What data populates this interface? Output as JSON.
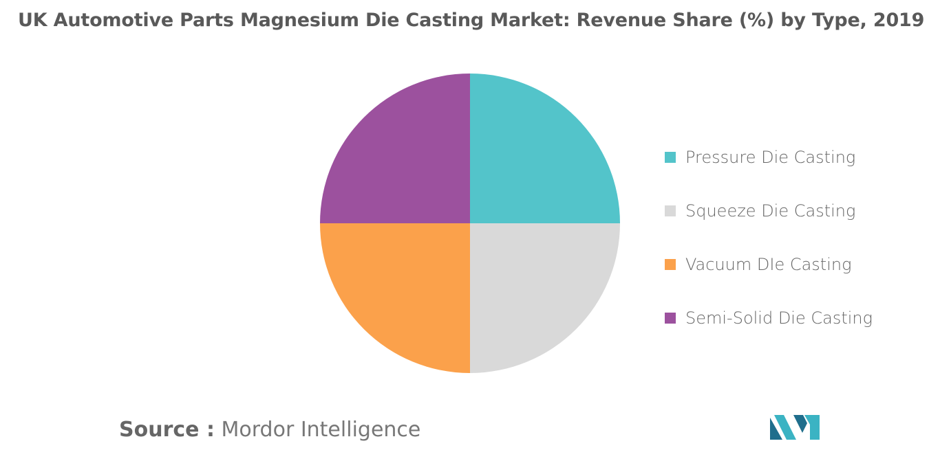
{
  "chart_data": {
    "type": "pie",
    "title": "UK Automotive Parts Magnesium Die Casting Market: Revenue Share (%) by Type, 2019",
    "slices": [
      {
        "label": "Pressure Die Casting",
        "value": 25,
        "color": "#53C4CA"
      },
      {
        "label": "Squeeze Die Casting",
        "value": 25,
        "color": "#D9D9D9"
      },
      {
        "label": "Vacuum DIe Casting",
        "value": 25,
        "color": "#FBA14B"
      },
      {
        "label": "Semi-Solid Die Casting",
        "value": 25,
        "color": "#9C519E"
      }
    ],
    "start_angle_deg": 0,
    "direction": "clockwise",
    "legend_position": "right"
  },
  "source": {
    "key": "Source :",
    "value": "Mordor Intelligence"
  },
  "logo": {
    "name": "mordor-intelligence-logo",
    "colors": [
      "#1F6E8C",
      "#3BB3C3"
    ]
  }
}
